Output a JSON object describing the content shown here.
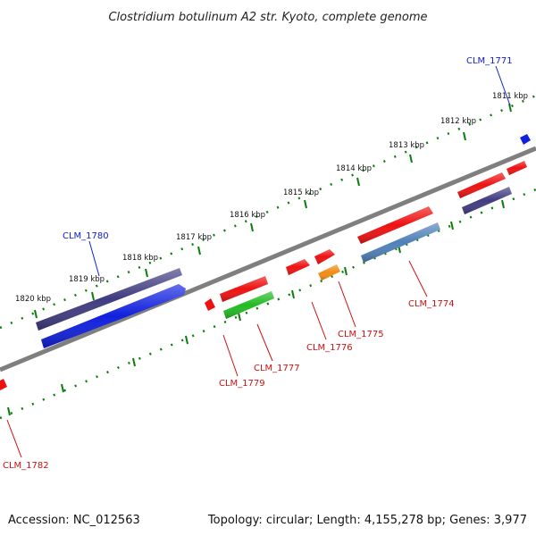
{
  "title": "Clostridium botulinum A2 str. Kyoto, complete genome",
  "footer": {
    "accession": "Accession: NC_012563",
    "summary": "Topology: circular; Length: 4,155,278 bp; Genes: 3,977"
  },
  "colors": {
    "backbone": "#7f7f7f",
    "tick": "#0a7d0a",
    "plus_label": "#1020cc",
    "minus_label": "#cc1010"
  },
  "kbp_labels": [
    "1811 kbp",
    "1812 kbp",
    "1813 kbp",
    "1814 kbp",
    "1815 kbp",
    "1816 kbp",
    "1817 kbp",
    "1818 kbp",
    "1819 kbp",
    "1820 kbp"
  ],
  "genes": [
    {
      "id": "CLM_1771",
      "label": "CLM_1771",
      "strand": "plus",
      "color": "#1020dd"
    },
    {
      "id": "CLM_1772",
      "label": "",
      "strand": "plus",
      "color": "#ee1111"
    },
    {
      "id": "CLM_1773",
      "label": "",
      "strand": "plus",
      "color": "#ee1111"
    },
    {
      "id": "CLM_1773b",
      "label": "",
      "strand": "plus",
      "color": "#403c80"
    },
    {
      "id": "CLM_1774",
      "label": "CLM_1774",
      "strand": "minus",
      "color": "#4f81b8"
    },
    {
      "id": "CLM_1774b",
      "label": "",
      "strand": "minus",
      "color": "#ee1111"
    },
    {
      "id": "CLM_1775",
      "label": "CLM_1775",
      "strand": "minus",
      "color": "#f08c14"
    },
    {
      "id": "CLM_1776",
      "label": "CLM_1776",
      "strand": "minus",
      "color": "#ee1111"
    },
    {
      "id": "CLM_1776b",
      "label": "",
      "strand": "minus",
      "color": "#ee1111"
    },
    {
      "id": "CLM_1777",
      "label": "CLM_1777",
      "strand": "minus",
      "color": "#22bb22"
    },
    {
      "id": "CLM_1778",
      "label": "",
      "strand": "minus",
      "color": "#ee1111"
    },
    {
      "id": "CLM_1779",
      "label": "CLM_1779",
      "strand": "minus",
      "color": "#ee1111"
    },
    {
      "id": "CLM_1780",
      "label": "CLM_1780",
      "strand": "plus",
      "color": "#403c80"
    },
    {
      "id": "CLM_1781",
      "label": "",
      "strand": "plus",
      "color": "#1020dd"
    },
    {
      "id": "CLM_1782",
      "label": "CLM_1782",
      "strand": "minus",
      "color": "#ee1111"
    }
  ]
}
